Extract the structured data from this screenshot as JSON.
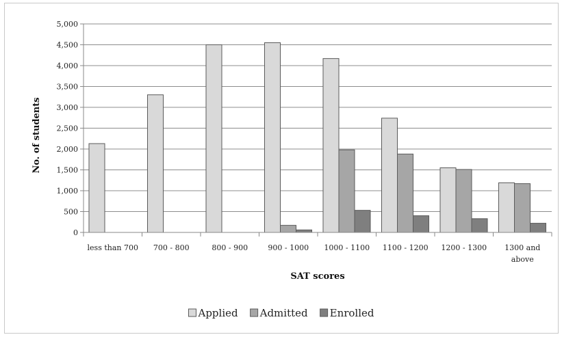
{
  "chart_data": {
    "type": "bar",
    "title": "",
    "xlabel": "SAT scores",
    "ylabel": "No. of students",
    "ylim": [
      0,
      5000
    ],
    "ytick_step": 500,
    "yticks": [
      "0",
      "500",
      "1,000",
      "1,500",
      "2,000",
      "2,500",
      "3,000",
      "3,500",
      "4,000",
      "4,500",
      "5,000"
    ],
    "grid": true,
    "legend_position": "bottom",
    "categories": [
      "less than 700",
      "700 - 800",
      "800 - 900",
      "900 - 1000",
      "1000 - 1100",
      "1100 - 1200",
      "1200 - 1300",
      "1300 and above"
    ],
    "category_lines": [
      [
        "less than 700"
      ],
      [
        "700 - 800"
      ],
      [
        "800 - 900"
      ],
      [
        "900 - 1000"
      ],
      [
        "1000 - 1100"
      ],
      [
        "1100 - 1200"
      ],
      [
        "1200 - 1300"
      ],
      [
        "1300 and",
        "above"
      ]
    ],
    "series": [
      {
        "name": "Applied",
        "color": "#d9d9d9",
        "values": [
          2130,
          3300,
          4500,
          4550,
          4170,
          2740,
          1550,
          1190
        ]
      },
      {
        "name": "Admitted",
        "color": "#a6a6a6",
        "values": [
          0,
          0,
          0,
          170,
          1980,
          1880,
          1510,
          1170
        ]
      },
      {
        "name": "Enrolled",
        "color": "#7f7f7f",
        "values": [
          0,
          0,
          0,
          60,
          530,
          400,
          330,
          220
        ]
      }
    ]
  }
}
